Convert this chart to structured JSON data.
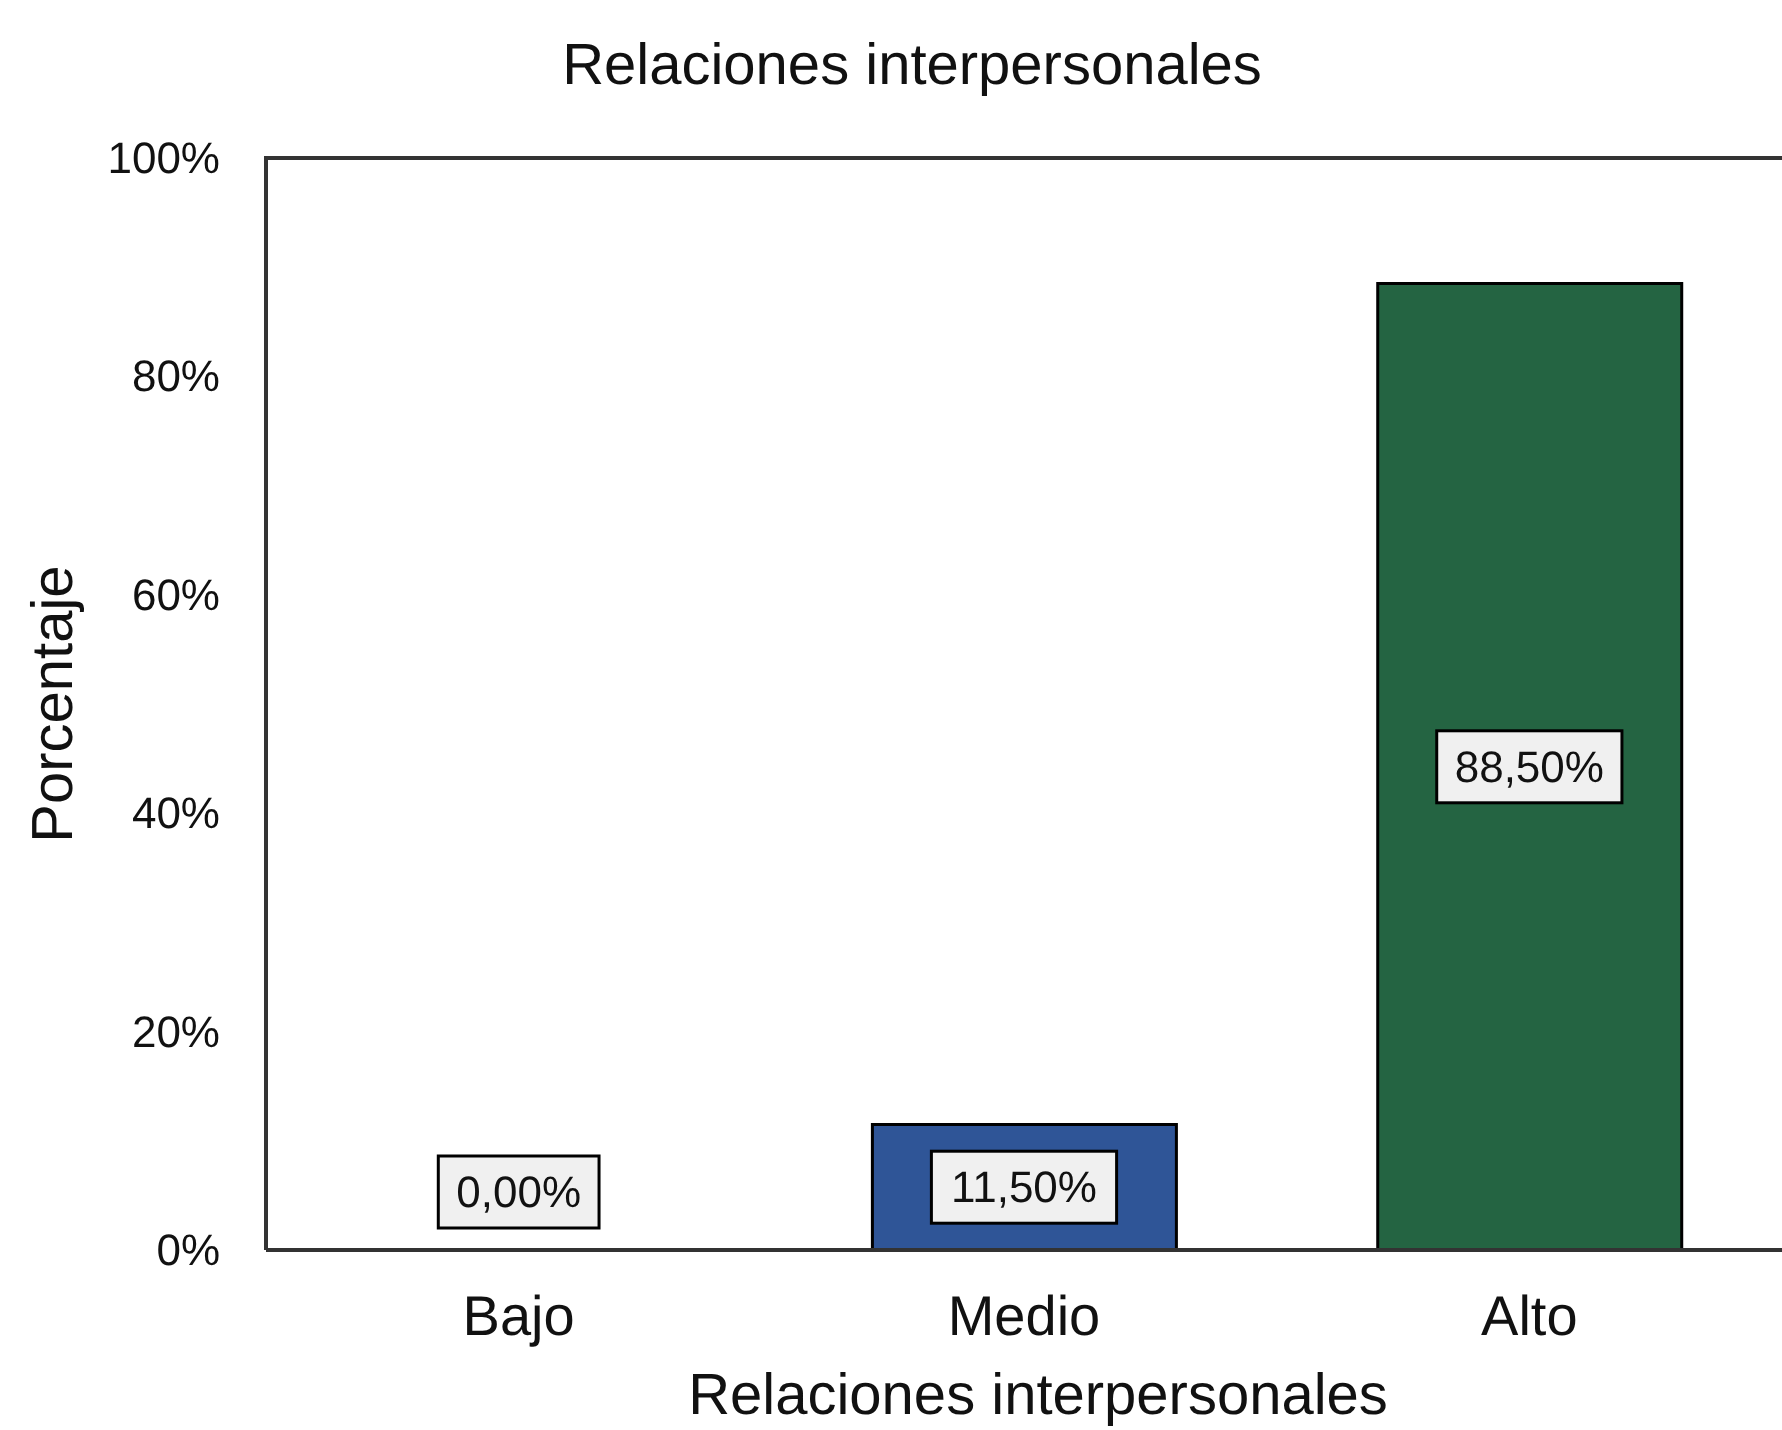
{
  "chart_data": {
    "type": "bar",
    "title": "Relaciones interpersonales",
    "xlabel": "Relaciones interpersonales",
    "ylabel": "Porcentaje",
    "categories": [
      "Bajo",
      "Medio",
      "Alto"
    ],
    "values": [
      0,
      11.5,
      88.5
    ],
    "colors": [
      null,
      "#2f5597",
      "#246442"
    ],
    "value_labels": [
      "0,00%",
      "11,50%",
      "88,50%"
    ],
    "ylim": [
      0,
      100
    ],
    "yticks": [
      {
        "value": 0,
        "label": "0%"
      },
      {
        "value": 20,
        "label": "20%"
      },
      {
        "value": 40,
        "label": "40%"
      },
      {
        "value": 60,
        "label": "60%"
      },
      {
        "value": 80,
        "label": "80%"
      },
      {
        "value": 100,
        "label": "100%"
      }
    ]
  }
}
